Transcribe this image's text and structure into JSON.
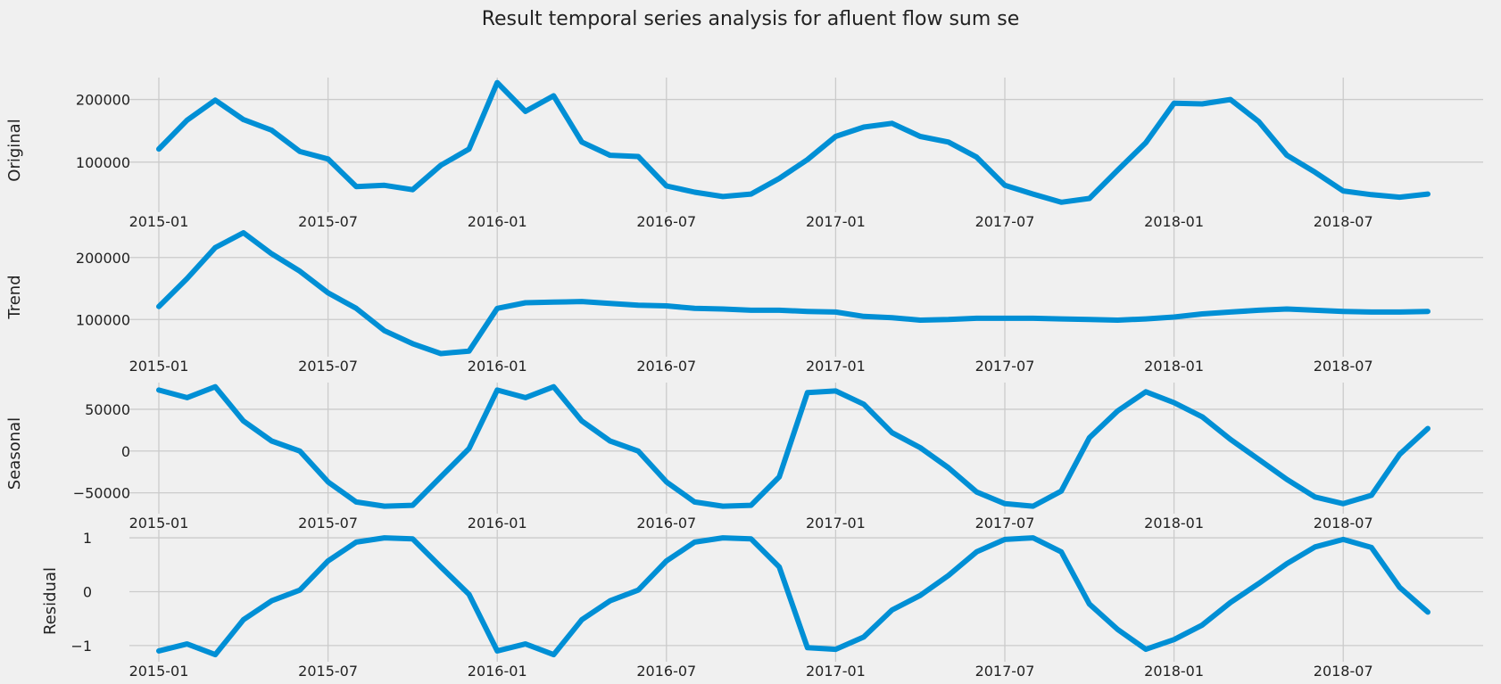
{
  "title": "Result temporal series analysis for afluent flow sum se",
  "chart_data": [
    {
      "type": "line",
      "ylabel": "Original",
      "yticks": [
        100000,
        200000
      ],
      "ylim": [
        20000,
        235000
      ],
      "x": [
        "2015-01",
        "2015-02",
        "2015-03",
        "2015-04",
        "2015-05",
        "2015-06",
        "2015-07",
        "2015-08",
        "2015-09",
        "2015-10",
        "2015-11",
        "2015-12",
        "2016-01",
        "2016-02",
        "2016-03",
        "2016-04",
        "2016-05",
        "2016-06",
        "2016-07",
        "2016-08",
        "2016-09",
        "2016-10",
        "2016-11",
        "2016-12",
        "2017-01",
        "2017-02",
        "2017-03",
        "2017-04",
        "2017-05",
        "2017-06",
        "2017-07",
        "2017-08",
        "2017-09",
        "2017-10",
        "2017-11",
        "2017-12",
        "2018-01",
        "2018-02",
        "2018-03",
        "2018-04",
        "2018-05",
        "2018-06",
        "2018-07",
        "2018-08",
        "2018-09",
        "2018-10"
      ],
      "values": [
        121000,
        167000,
        199000,
        168000,
        151000,
        117000,
        105000,
        61000,
        63000,
        56000,
        95000,
        121000,
        227000,
        181000,
        206000,
        132000,
        111000,
        109000,
        62000,
        52000,
        45000,
        49000,
        74000,
        104000,
        141000,
        156000,
        162000,
        141000,
        132000,
        108000,
        63000,
        49000,
        36000,
        42000,
        87000,
        131000,
        194000,
        193000,
        200000,
        165000,
        111000,
        84000,
        54000,
        48000,
        44000,
        49000
      ],
      "xticks": [
        "2015-01",
        "2015-07",
        "2016-01",
        "2016-07",
        "2017-01",
        "2017-07",
        "2018-01",
        "2018-07"
      ]
    },
    {
      "type": "line",
      "ylabel": "Trend",
      "yticks": [
        100000,
        200000
      ],
      "ylim": [
        40000,
        250000
      ],
      "x": [
        "2015-01",
        "2015-02",
        "2015-03",
        "2015-04",
        "2015-05",
        "2015-06",
        "2015-07",
        "2015-08",
        "2015-09",
        "2015-10",
        "2015-11",
        "2015-12",
        "2016-01",
        "2016-02",
        "2016-03",
        "2016-04",
        "2016-05",
        "2016-06",
        "2016-07",
        "2016-08",
        "2016-09",
        "2016-10",
        "2016-11",
        "2016-12",
        "2017-01",
        "2017-02",
        "2017-03",
        "2017-04",
        "2017-05",
        "2017-06",
        "2017-07",
        "2017-08",
        "2017-09",
        "2017-10",
        "2017-11",
        "2017-12",
        "2018-01",
        "2018-02",
        "2018-03",
        "2018-04",
        "2018-05",
        "2018-06",
        "2018-07",
        "2018-08",
        "2018-09",
        "2018-10"
      ],
      "values": [
        121000,
        166000,
        216000,
        240000,
        206000,
        178000,
        143000,
        118000,
        82000,
        61000,
        45000,
        49000,
        118000,
        127000,
        128000,
        129000,
        126000,
        123000,
        122000,
        118000,
        117000,
        115000,
        115000,
        113000,
        112000,
        105000,
        103000,
        99000,
        100000,
        102000,
        102000,
        102000,
        101000,
        100000,
        99000,
        101000,
        104000,
        109000,
        112000,
        115000,
        117000,
        115000,
        113000,
        112000,
        112000,
        113000
      ],
      "xticks": [
        "2015-01",
        "2015-07",
        "2016-01",
        "2016-07",
        "2017-01",
        "2017-07",
        "2018-01",
        "2018-07"
      ]
    },
    {
      "type": "line",
      "ylabel": "Seasonal",
      "yticks": [
        -50000,
        0,
        50000
      ],
      "ylim": [
        -75000,
        82000
      ],
      "x": [
        "2015-01",
        "2015-02",
        "2015-03",
        "2015-04",
        "2015-05",
        "2015-06",
        "2015-07",
        "2015-08",
        "2015-09",
        "2015-10",
        "2015-11",
        "2015-12",
        "2016-01",
        "2016-02",
        "2016-03",
        "2016-04",
        "2016-05",
        "2016-06",
        "2016-07",
        "2016-08",
        "2016-09",
        "2016-10",
        "2016-11",
        "2016-12",
        "2017-01",
        "2017-02",
        "2017-03",
        "2017-04",
        "2017-05",
        "2017-06",
        "2017-07",
        "2017-08",
        "2017-09",
        "2017-10",
        "2017-11",
        "2017-12",
        "2018-01",
        "2018-02",
        "2018-03",
        "2018-04",
        "2018-05",
        "2018-06",
        "2018-07",
        "2018-08",
        "2018-09",
        "2018-10"
      ],
      "values": [
        73000,
        64000,
        77000,
        36000,
        12000,
        0,
        -37000,
        -61000,
        -66000,
        -65000,
        -31000,
        3000,
        73000,
        64000,
        77000,
        36000,
        12000,
        0,
        -37000,
        -61000,
        -66000,
        -65000,
        -31000,
        70000,
        72000,
        56000,
        22000,
        4000,
        -20000,
        -49000,
        -63000,
        -66000,
        -48000,
        16000,
        48000,
        71000,
        58000,
        41000,
        14000,
        -10000,
        -34000,
        -55000,
        -63000,
        -53000,
        -4000,
        27000
      ],
      "xticks": [
        "2015-01",
        "2015-07",
        "2016-01",
        "2016-07",
        "2017-01",
        "2017-07",
        "2018-01",
        "2018-07"
      ]
    },
    {
      "type": "line",
      "ylabel": "Residual",
      "yticks": [
        -1,
        0,
        1
      ],
      "ylim": [
        -1.3,
        1.15
      ],
      "x": [
        "2015-01",
        "2015-02",
        "2015-03",
        "2015-04",
        "2015-05",
        "2015-06",
        "2015-07",
        "2015-08",
        "2015-09",
        "2015-10",
        "2015-11",
        "2015-12",
        "2016-01",
        "2016-02",
        "2016-03",
        "2016-04",
        "2016-05",
        "2016-06",
        "2016-07",
        "2016-08",
        "2016-09",
        "2016-10",
        "2016-11",
        "2016-12",
        "2017-01",
        "2017-02",
        "2017-03",
        "2017-04",
        "2017-05",
        "2017-06",
        "2017-07",
        "2017-08",
        "2017-09",
        "2017-10",
        "2017-11",
        "2017-12",
        "2018-01",
        "2018-02",
        "2018-03",
        "2018-04",
        "2018-05",
        "2018-06",
        "2018-07",
        "2018-08",
        "2018-09",
        "2018-10"
      ],
      "values": [
        -1.1,
        -0.97,
        -1.17,
        -0.52,
        -0.17,
        0.03,
        0.57,
        0.92,
        1.0,
        0.98,
        0.46,
        -0.05,
        -1.1,
        -0.97,
        -1.17,
        -0.52,
        -0.17,
        0.03,
        0.57,
        0.92,
        1.0,
        0.98,
        0.46,
        -1.04,
        -1.07,
        -0.84,
        -0.34,
        -0.07,
        0.3,
        0.74,
        0.97,
        1.0,
        0.74,
        -0.23,
        -0.7,
        -1.07,
        -0.89,
        -0.62,
        -0.2,
        0.15,
        0.52,
        0.83,
        0.97,
        0.82,
        0.08,
        -0.38
      ],
      "xticks": [
        "2015-01",
        "2015-07",
        "2016-01",
        "2016-07",
        "2017-01",
        "2017-07",
        "2018-01",
        "2018-07"
      ]
    }
  ]
}
